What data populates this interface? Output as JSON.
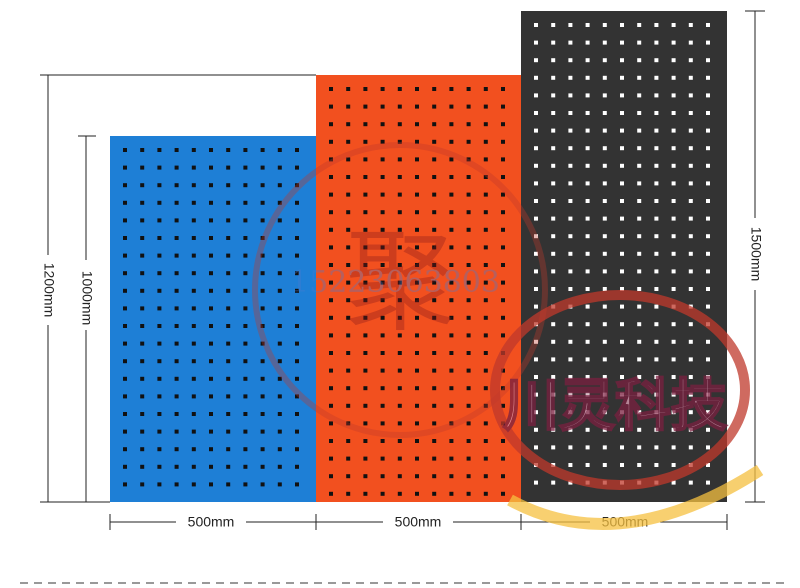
{
  "dimensions": {
    "left_outer": "1200mm",
    "left_inner": "1000mm",
    "right": "1500mm",
    "widths": [
      "500mm",
      "500mm",
      "500mm"
    ]
  },
  "watermark": {
    "phone": "15223063803",
    "mark": "聚",
    "brand": "川灵科技"
  }
}
